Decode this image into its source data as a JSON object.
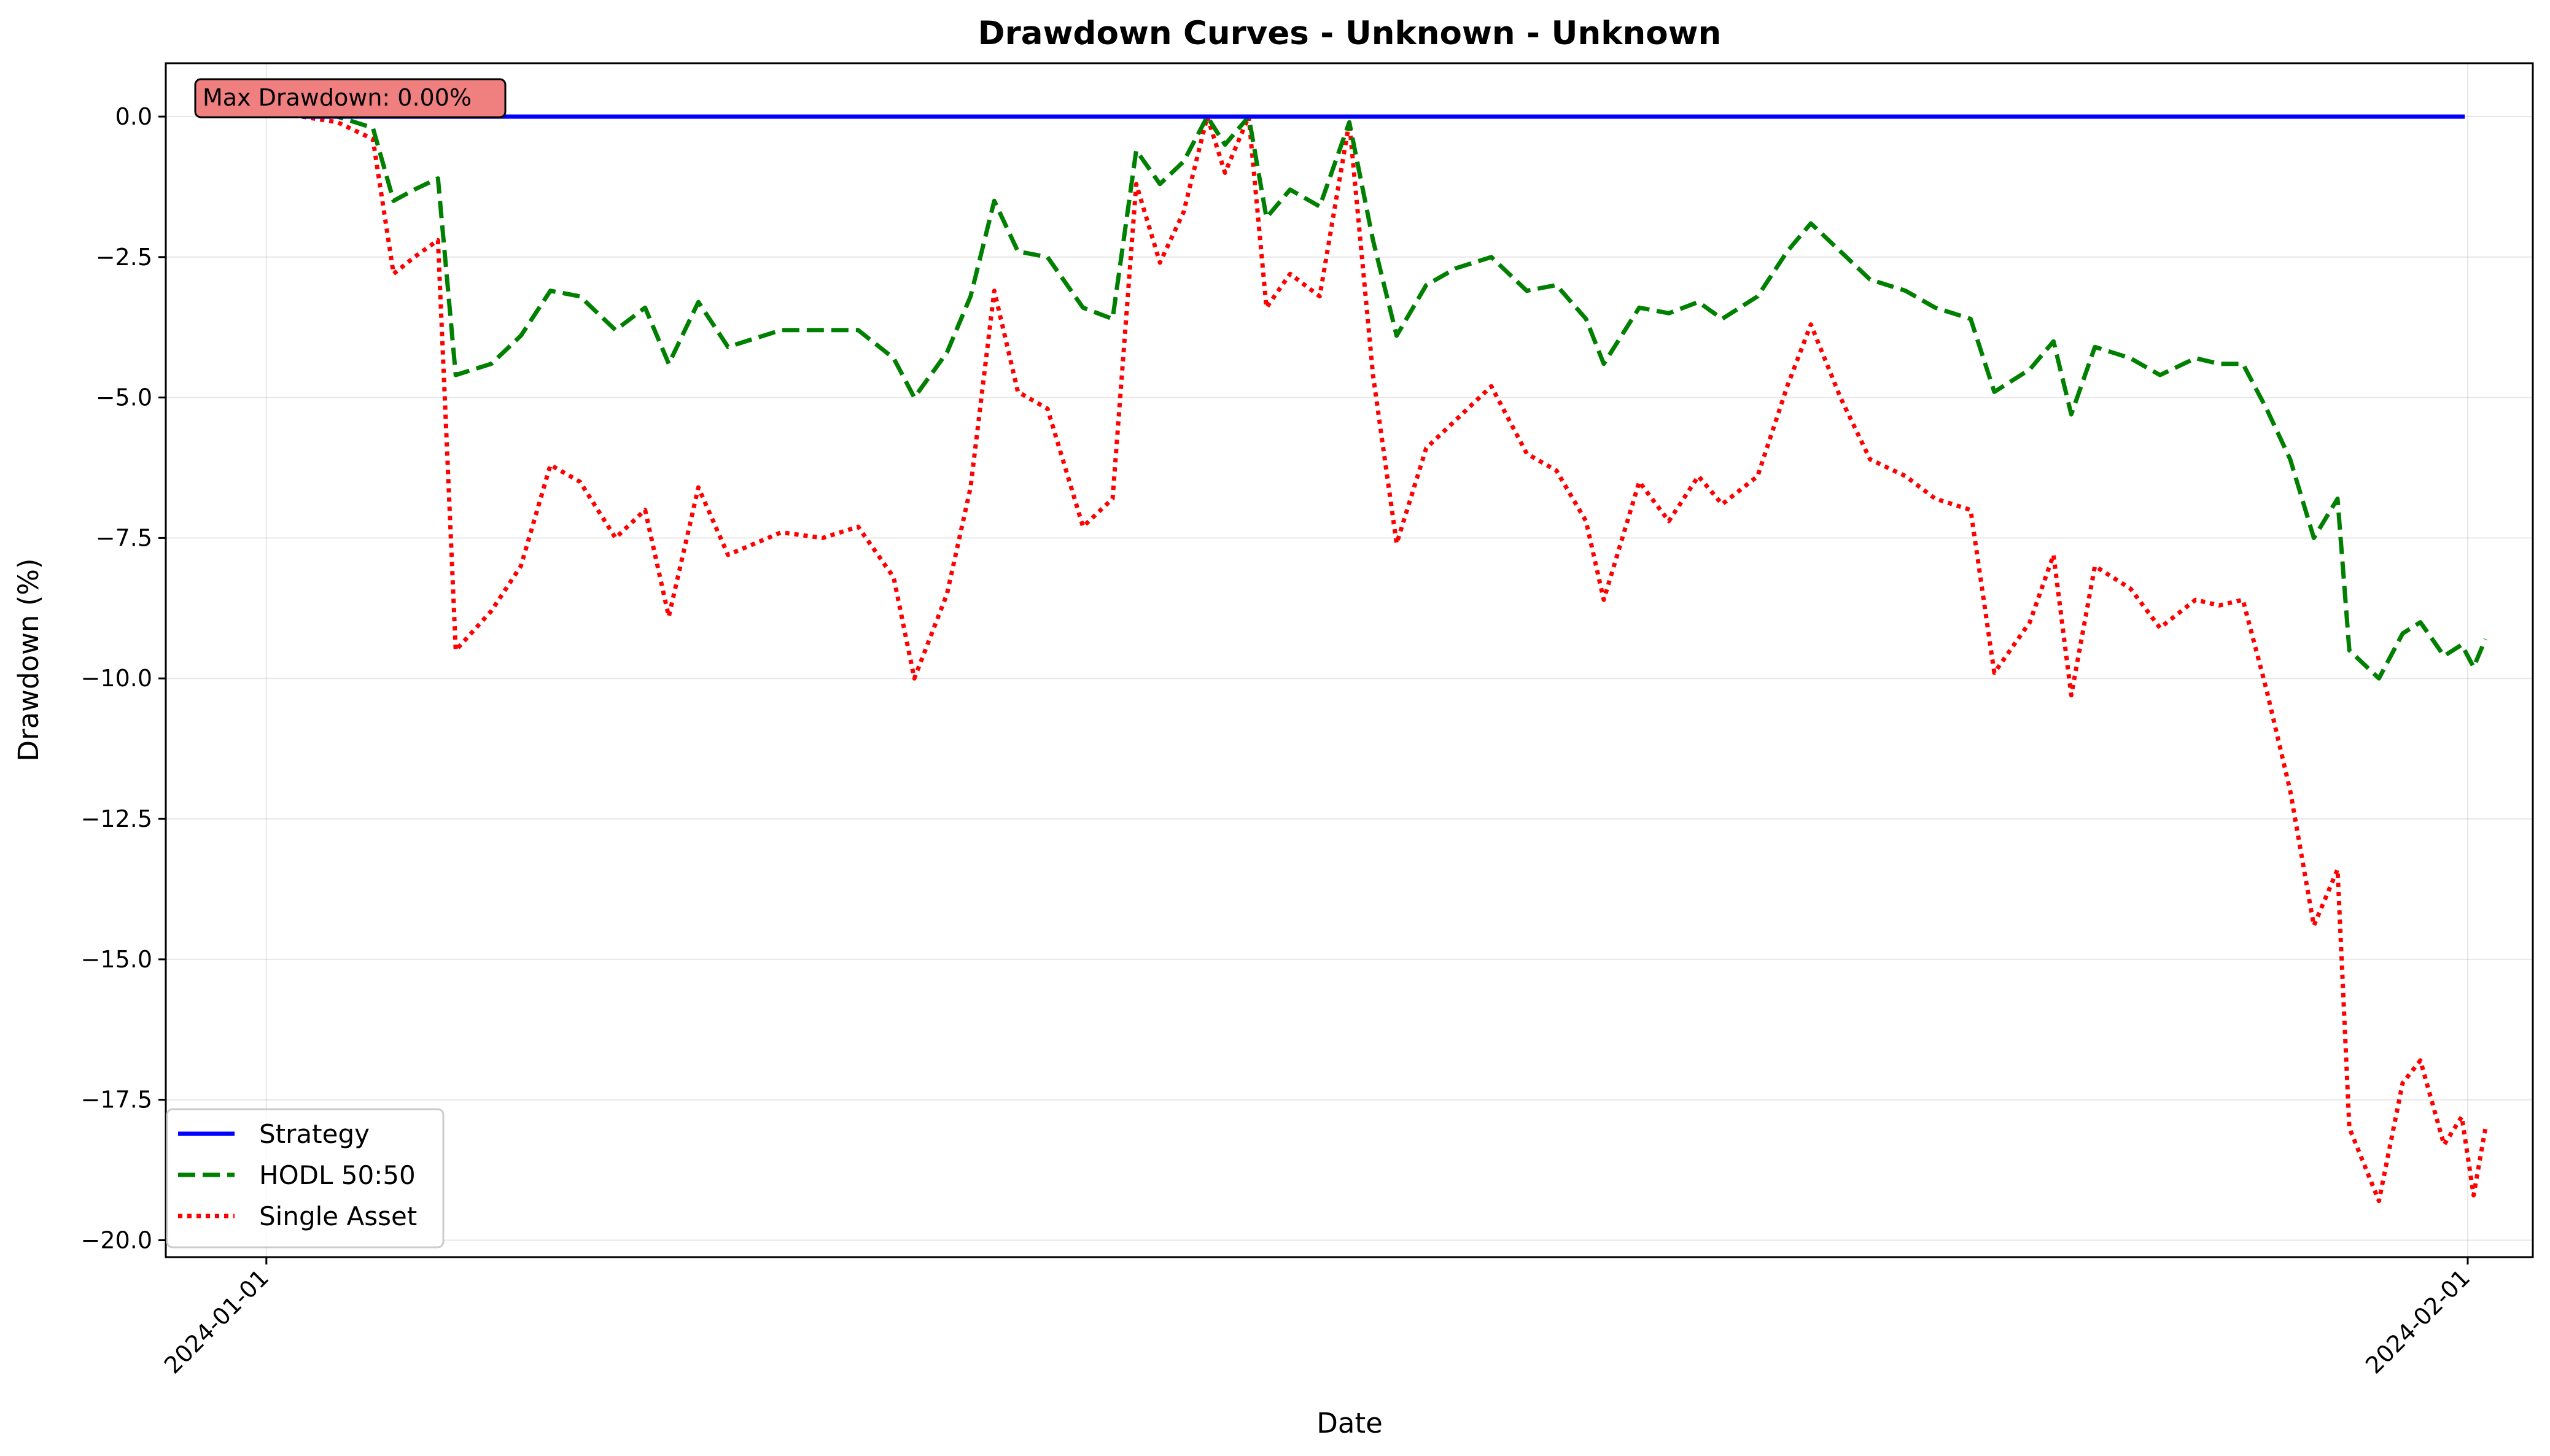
{
  "chart_data": {
    "type": "line",
    "title": "Drawdown Curves - Unknown - Unknown",
    "xlabel": "Date",
    "ylabel": "Drawdown (%)",
    "xlim": [
      "2023-12-30T14:00",
      "2024-02-01T22:00"
    ],
    "ylim": [
      -20.3,
      0.95
    ],
    "x_ticks": [
      "2024-01-01",
      "2024-02-01"
    ],
    "y_ticks": [
      0.0,
      -2.5,
      -5.0,
      -7.5,
      -10.0,
      -12.5,
      -15.0,
      -17.5,
      -20.0
    ],
    "y_tick_labels": [
      "0.0",
      "−2.5",
      "−5.0",
      "−7.5",
      "−10.0",
      "−12.5",
      "−15.0",
      "−17.5",
      "−20.0"
    ],
    "grid": true,
    "legend_position": "lower-left",
    "annotation": "Max Drawdown: 0.00%",
    "annotation_color": "#f08080",
    "series": [
      {
        "name": "Strategy",
        "color": "#0000ff",
        "style": "solid",
        "points": [
          [
            "2024-01-01T12:00",
            0.0
          ],
          [
            "2024-01-31T23:00",
            0.0
          ]
        ]
      },
      {
        "name": "HODL 50:50",
        "color": "#008000",
        "style": "dashed",
        "points": [
          [
            "2024-01-01T12:00",
            0.0
          ],
          [
            "2024-01-02T00:00",
            0.0
          ],
          [
            "2024-01-02T12:00",
            -0.2
          ],
          [
            "2024-01-02T19:00",
            -1.5
          ],
          [
            "2024-01-03T02:00",
            -1.3
          ],
          [
            "2024-01-03T10:00",
            -1.1
          ],
          [
            "2024-01-03T16:00",
            -4.6
          ],
          [
            "2024-01-04T04:00",
            -4.4
          ],
          [
            "2024-01-04T14:00",
            -3.9
          ],
          [
            "2024-01-05T00:00",
            -3.1
          ],
          [
            "2024-01-05T10:00",
            -3.2
          ],
          [
            "2024-01-05T22:00",
            -3.8
          ],
          [
            "2024-01-06T08:00",
            -3.4
          ],
          [
            "2024-01-06T16:00",
            -4.4
          ],
          [
            "2024-01-07T02:00",
            -3.3
          ],
          [
            "2024-01-07T12:00",
            -4.1
          ],
          [
            "2024-01-08T06:00",
            -3.8
          ],
          [
            "2024-01-08T20:00",
            -3.8
          ],
          [
            "2024-01-09T08:00",
            -3.8
          ],
          [
            "2024-01-09T20:00",
            -4.3
          ],
          [
            "2024-01-10T03:00",
            -5.0
          ],
          [
            "2024-01-10T14:00",
            -4.2
          ],
          [
            "2024-01-10T22:00",
            -3.2
          ],
          [
            "2024-01-11T06:00",
            -1.5
          ],
          [
            "2024-01-11T14:00",
            -2.4
          ],
          [
            "2024-01-12T00:00",
            -2.5
          ],
          [
            "2024-01-12T12:00",
            -3.4
          ],
          [
            "2024-01-12T22:00",
            -3.6
          ],
          [
            "2024-01-13T06:00",
            -0.6
          ],
          [
            "2024-01-13T14:00",
            -1.2
          ],
          [
            "2024-01-13T22:00",
            -0.8
          ],
          [
            "2024-01-14T06:00",
            0.0
          ],
          [
            "2024-01-14T12:00",
            -0.5
          ],
          [
            "2024-01-14T20:00",
            0.0
          ],
          [
            "2024-01-15T02:00",
            -1.8
          ],
          [
            "2024-01-15T10:00",
            -1.3
          ],
          [
            "2024-01-15T20:00",
            -1.6
          ],
          [
            "2024-01-16T06:00",
            -0.1
          ],
          [
            "2024-01-16T14:00",
            -2.2
          ],
          [
            "2024-01-16T22:00",
            -3.9
          ],
          [
            "2024-01-17T08:00",
            -3.0
          ],
          [
            "2024-01-17T18:00",
            -2.7
          ],
          [
            "2024-01-18T06:00",
            -2.5
          ],
          [
            "2024-01-18T18:00",
            -3.1
          ],
          [
            "2024-01-19T04:00",
            -3.0
          ],
          [
            "2024-01-19T14:00",
            -3.6
          ],
          [
            "2024-01-19T20:00",
            -4.4
          ],
          [
            "2024-01-20T08:00",
            -3.4
          ],
          [
            "2024-01-20T18:00",
            -3.5
          ],
          [
            "2024-01-21T04:00",
            -3.3
          ],
          [
            "2024-01-21T12:00",
            -3.6
          ],
          [
            "2024-01-22T00:00",
            -3.2
          ],
          [
            "2024-01-22T10:00",
            -2.4
          ],
          [
            "2024-01-22T18:00",
            -1.9
          ],
          [
            "2024-01-23T04:00",
            -2.4
          ],
          [
            "2024-01-23T14:00",
            -2.9
          ],
          [
            "2024-01-24T02:00",
            -3.1
          ],
          [
            "2024-01-24T12:00",
            -3.4
          ],
          [
            "2024-01-25T00:00",
            -3.6
          ],
          [
            "2024-01-25T08:00",
            -4.9
          ],
          [
            "2024-01-25T20:00",
            -4.5
          ],
          [
            "2024-01-26T04:00",
            -4.0
          ],
          [
            "2024-01-26T10:00",
            -5.3
          ],
          [
            "2024-01-26T18:00",
            -4.1
          ],
          [
            "2024-01-27T06:00",
            -4.3
          ],
          [
            "2024-01-27T16:00",
            -4.6
          ],
          [
            "2024-01-28T04:00",
            -4.3
          ],
          [
            "2024-01-28T12:00",
            -4.4
          ],
          [
            "2024-01-28T20:00",
            -4.4
          ],
          [
            "2024-01-29T04:00",
            -5.2
          ],
          [
            "2024-01-29T12:00",
            -6.1
          ],
          [
            "2024-01-29T20:00",
            -7.5
          ],
          [
            "2024-01-30T04:00",
            -6.8
          ],
          [
            "2024-01-30T08:00",
            -9.5
          ],
          [
            "2024-01-30T18:00",
            -10.0
          ],
          [
            "2024-01-31T02:00",
            -9.2
          ],
          [
            "2024-01-31T08:00",
            -9.0
          ],
          [
            "2024-01-31T16:00",
            -9.6
          ],
          [
            "2024-01-31T22:00",
            -9.4
          ],
          [
            "2024-02-01T02:00",
            -9.8
          ],
          [
            "2024-02-01T06:00",
            -9.3
          ]
        ]
      },
      {
        "name": "Single Asset",
        "color": "#ff0000",
        "style": "dotted",
        "points": [
          [
            "2024-01-01T12:00",
            0.0
          ],
          [
            "2024-01-02T00:00",
            -0.1
          ],
          [
            "2024-01-02T12:00",
            -0.4
          ],
          [
            "2024-01-02T19:00",
            -2.8
          ],
          [
            "2024-01-03T02:00",
            -2.5
          ],
          [
            "2024-01-03T10:00",
            -2.2
          ],
          [
            "2024-01-03T16:00",
            -9.5
          ],
          [
            "2024-01-04T04:00",
            -8.8
          ],
          [
            "2024-01-04T14:00",
            -8.0
          ],
          [
            "2024-01-05T00:00",
            -6.2
          ],
          [
            "2024-01-05T10:00",
            -6.5
          ],
          [
            "2024-01-05T22:00",
            -7.5
          ],
          [
            "2024-01-06T08:00",
            -7.0
          ],
          [
            "2024-01-06T16:00",
            -8.9
          ],
          [
            "2024-01-07T02:00",
            -6.6
          ],
          [
            "2024-01-07T12:00",
            -7.8
          ],
          [
            "2024-01-08T06:00",
            -7.4
          ],
          [
            "2024-01-08T20:00",
            -7.5
          ],
          [
            "2024-01-09T08:00",
            -7.3
          ],
          [
            "2024-01-09T20:00",
            -8.2
          ],
          [
            "2024-01-10T03:00",
            -10.0
          ],
          [
            "2024-01-10T14:00",
            -8.5
          ],
          [
            "2024-01-10T22:00",
            -6.6
          ],
          [
            "2024-01-11T06:00",
            -3.1
          ],
          [
            "2024-01-11T14:00",
            -4.9
          ],
          [
            "2024-01-12T00:00",
            -5.2
          ],
          [
            "2024-01-12T12:00",
            -7.3
          ],
          [
            "2024-01-12T22:00",
            -6.8
          ],
          [
            "2024-01-13T06:00",
            -1.2
          ],
          [
            "2024-01-13T14:00",
            -2.6
          ],
          [
            "2024-01-13T22:00",
            -1.7
          ],
          [
            "2024-01-14T06:00",
            0.0
          ],
          [
            "2024-01-14T12:00",
            -1.0
          ],
          [
            "2024-01-14T20:00",
            0.0
          ],
          [
            "2024-01-15T02:00",
            -3.4
          ],
          [
            "2024-01-15T10:00",
            -2.8
          ],
          [
            "2024-01-15T20:00",
            -3.2
          ],
          [
            "2024-01-16T06:00",
            -0.1
          ],
          [
            "2024-01-16T14:00",
            -4.6
          ],
          [
            "2024-01-16T22:00",
            -7.6
          ],
          [
            "2024-01-17T08:00",
            -5.9
          ],
          [
            "2024-01-17T18:00",
            -5.4
          ],
          [
            "2024-01-18T06:00",
            -4.8
          ],
          [
            "2024-01-18T18:00",
            -6.0
          ],
          [
            "2024-01-19T04:00",
            -6.3
          ],
          [
            "2024-01-19T14:00",
            -7.2
          ],
          [
            "2024-01-19T20:00",
            -8.6
          ],
          [
            "2024-01-20T08:00",
            -6.5
          ],
          [
            "2024-01-20T18:00",
            -7.2
          ],
          [
            "2024-01-21T04:00",
            -6.4
          ],
          [
            "2024-01-21T12:00",
            -6.9
          ],
          [
            "2024-01-22T00:00",
            -6.4
          ],
          [
            "2024-01-22T10:00",
            -4.8
          ],
          [
            "2024-01-22T18:00",
            -3.7
          ],
          [
            "2024-01-23T04:00",
            -5.0
          ],
          [
            "2024-01-23T14:00",
            -6.1
          ],
          [
            "2024-01-24T02:00",
            -6.4
          ],
          [
            "2024-01-24T12:00",
            -6.8
          ],
          [
            "2024-01-25T00:00",
            -7.0
          ],
          [
            "2024-01-25T08:00",
            -9.9
          ],
          [
            "2024-01-25T20:00",
            -9.0
          ],
          [
            "2024-01-26T04:00",
            -7.8
          ],
          [
            "2024-01-26T10:00",
            -10.3
          ],
          [
            "2024-01-26T18:00",
            -8.0
          ],
          [
            "2024-01-27T06:00",
            -8.4
          ],
          [
            "2024-01-27T16:00",
            -9.1
          ],
          [
            "2024-01-28T04:00",
            -8.6
          ],
          [
            "2024-01-28T12:00",
            -8.7
          ],
          [
            "2024-01-28T20:00",
            -8.6
          ],
          [
            "2024-01-29T04:00",
            -10.2
          ],
          [
            "2024-01-29T12:00",
            -12.0
          ],
          [
            "2024-01-29T20:00",
            -14.4
          ],
          [
            "2024-01-30T04:00",
            -13.4
          ],
          [
            "2024-01-30T08:00",
            -18.0
          ],
          [
            "2024-01-30T18:00",
            -19.3
          ],
          [
            "2024-01-31T02:00",
            -17.2
          ],
          [
            "2024-01-31T08:00",
            -16.8
          ],
          [
            "2024-01-31T16:00",
            -18.3
          ],
          [
            "2024-01-31T22:00",
            -17.8
          ],
          [
            "2024-02-01T02:00",
            -19.2
          ],
          [
            "2024-02-01T06:00",
            -18.0
          ]
        ]
      }
    ]
  }
}
